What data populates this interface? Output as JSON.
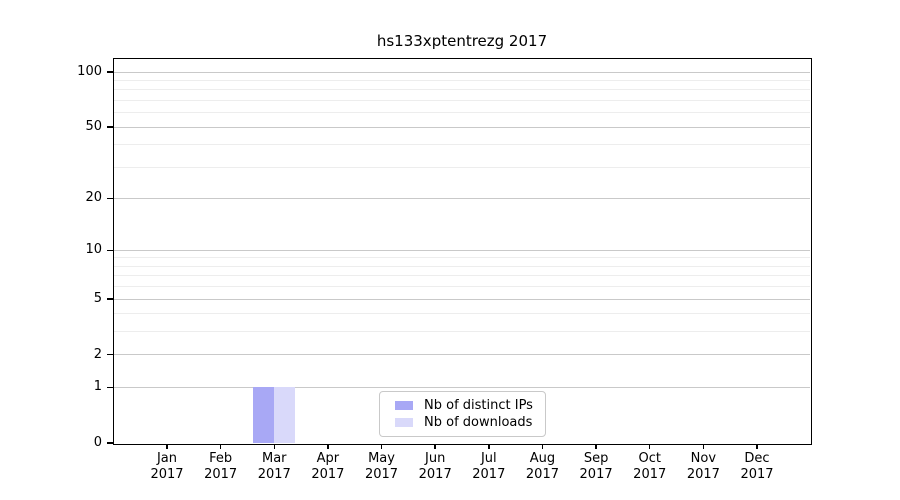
{
  "title": "hs133xptentrezg 2017",
  "chart_data": {
    "type": "bar",
    "title": "hs133xptentrezg 2017",
    "x_months": [
      "Jan",
      "Feb",
      "Mar",
      "Apr",
      "May",
      "Jun",
      "Jul",
      "Aug",
      "Sep",
      "Oct",
      "Nov",
      "Dec"
    ],
    "x_year": "2017",
    "series": [
      {
        "name": "Nb of distinct IPs",
        "color": "#a8a8f5",
        "values": [
          0,
          0,
          1,
          0,
          0,
          0,
          0,
          0,
          0,
          0,
          0,
          0
        ]
      },
      {
        "name": "Nb of downloads",
        "color": "#d9d9fa",
        "values": [
          0,
          0,
          1,
          0,
          0,
          0,
          0,
          0,
          0,
          0,
          0,
          0
        ]
      }
    ],
    "yaxis": {
      "scale": "log1p",
      "major_ticks": [
        0,
        1,
        2,
        5,
        10,
        20,
        50,
        100
      ],
      "minor_ticks": [
        3,
        4,
        6,
        7,
        8,
        9,
        30,
        40,
        60,
        70,
        80,
        90
      ],
      "ylim": [
        0,
        118
      ]
    },
    "grid": "horizontal",
    "legend": {
      "position": "lower-center",
      "entries": [
        "Nb of distinct IPs",
        "Nb of downloads"
      ]
    }
  }
}
